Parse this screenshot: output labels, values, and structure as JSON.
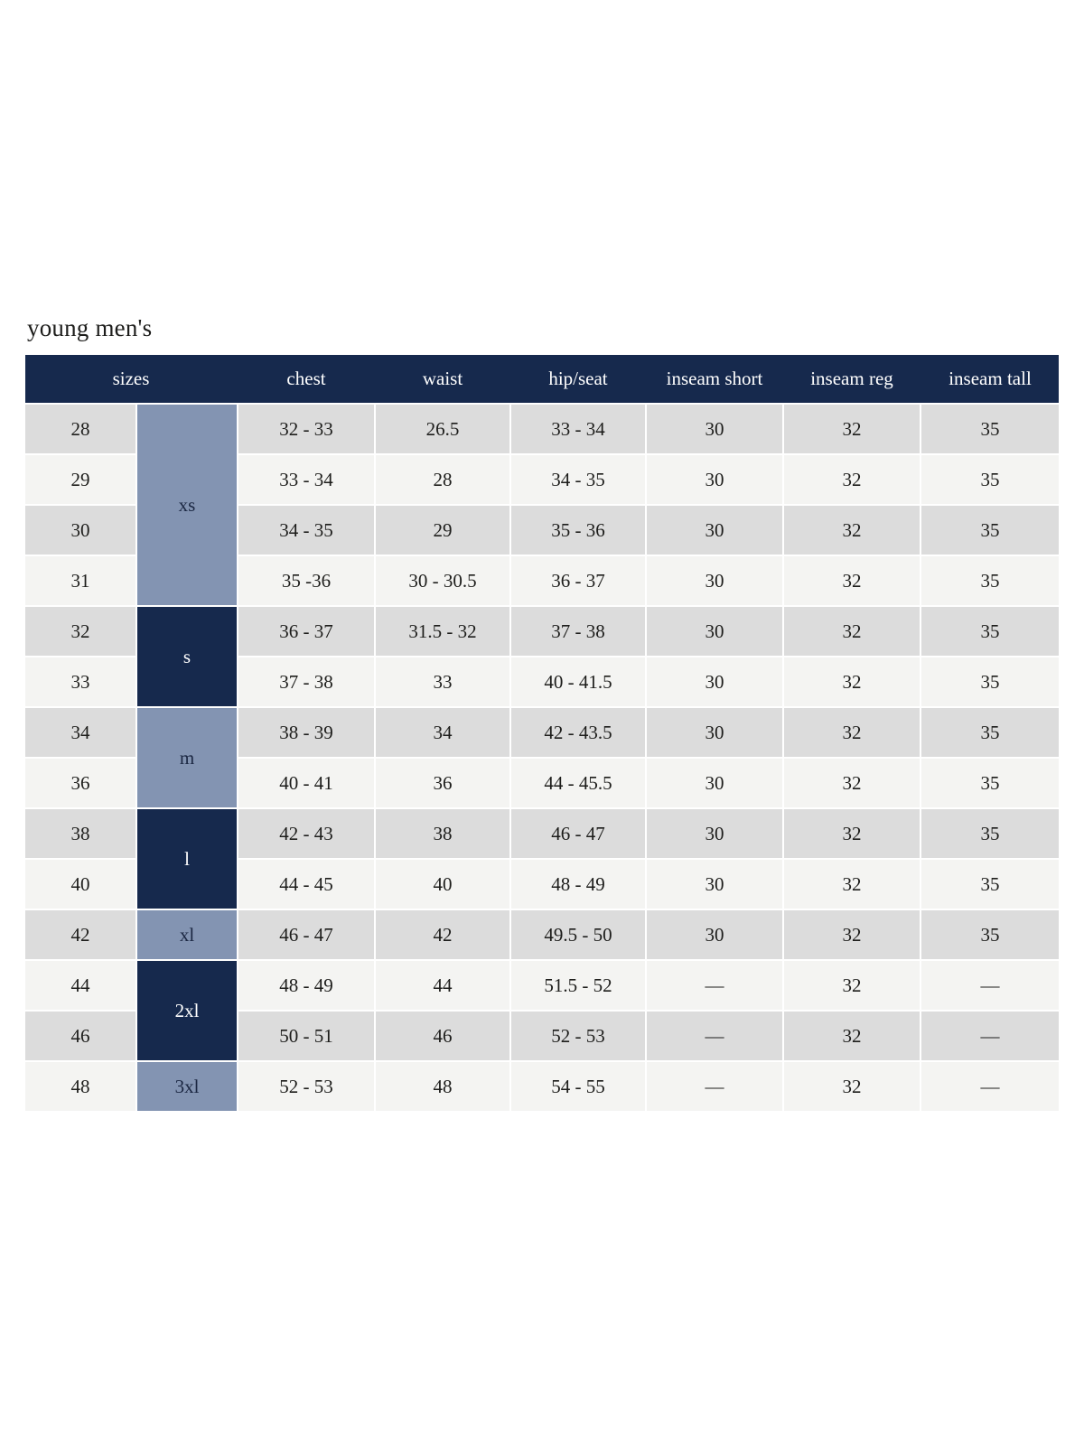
{
  "title": "young men's",
  "colors": {
    "header_navy": "#16294d",
    "group_slate": "#8394b2",
    "row_gray": "#dcdcdc",
    "row_light": "#f4f4f2",
    "header_text": "#ffffff",
    "body_text": "#1d1d1b",
    "page_bg": "#ffffff"
  },
  "table": {
    "headers": [
      "sizes",
      "chest",
      "waist",
      "hip/seat",
      "inseam short",
      "inseam reg",
      "inseam tall"
    ],
    "groups": [
      {
        "label": "xs",
        "span": 4,
        "tone": "slate"
      },
      {
        "label": "s",
        "span": 2,
        "tone": "navy"
      },
      {
        "label": "m",
        "span": 2,
        "tone": "slate"
      },
      {
        "label": "l",
        "span": 2,
        "tone": "navy"
      },
      {
        "label": "xl",
        "span": 1,
        "tone": "slate"
      },
      {
        "label": "2xl",
        "span": 2,
        "tone": "navy"
      },
      {
        "label": "3xl",
        "span": 1,
        "tone": "slate"
      }
    ],
    "columns": [
      "chest",
      "waist",
      "hip_seat",
      "inseam_short",
      "inseam_reg",
      "inseam_tall"
    ],
    "rows": [
      {
        "size": "28",
        "chest": "32 - 33",
        "waist": "26.5",
        "hip_seat": "33 - 34",
        "inseam_short": "30",
        "inseam_reg": "32",
        "inseam_tall": "35"
      },
      {
        "size": "29",
        "chest": "33 - 34",
        "waist": "28",
        "hip_seat": "34 - 35",
        "inseam_short": "30",
        "inseam_reg": "32",
        "inseam_tall": "35"
      },
      {
        "size": "30",
        "chest": "34 - 35",
        "waist": "29",
        "hip_seat": "35 - 36",
        "inseam_short": "30",
        "inseam_reg": "32",
        "inseam_tall": "35"
      },
      {
        "size": "31",
        "chest": "35 -36",
        "waist": "30 - 30.5",
        "hip_seat": "36 - 37",
        "inseam_short": "30",
        "inseam_reg": "32",
        "inseam_tall": "35"
      },
      {
        "size": "32",
        "chest": "36 - 37",
        "waist": "31.5 - 32",
        "hip_seat": "37 - 38",
        "inseam_short": "30",
        "inseam_reg": "32",
        "inseam_tall": "35"
      },
      {
        "size": "33",
        "chest": "37 - 38",
        "waist": "33",
        "hip_seat": "40 - 41.5",
        "inseam_short": "30",
        "inseam_reg": "32",
        "inseam_tall": "35"
      },
      {
        "size": "34",
        "chest": "38 - 39",
        "waist": "34",
        "hip_seat": "42 - 43.5",
        "inseam_short": "30",
        "inseam_reg": "32",
        "inseam_tall": "35"
      },
      {
        "size": "36",
        "chest": "40 - 41",
        "waist": "36",
        "hip_seat": "44 - 45.5",
        "inseam_short": "30",
        "inseam_reg": "32",
        "inseam_tall": "35"
      },
      {
        "size": "38",
        "chest": "42 - 43",
        "waist": "38",
        "hip_seat": "46 - 47",
        "inseam_short": "30",
        "inseam_reg": "32",
        "inseam_tall": "35"
      },
      {
        "size": "40",
        "chest": "44 - 45",
        "waist": "40",
        "hip_seat": "48 - 49",
        "inseam_short": "30",
        "inseam_reg": "32",
        "inseam_tall": "35"
      },
      {
        "size": "42",
        "chest": "46 - 47",
        "waist": "42",
        "hip_seat": "49.5 - 50",
        "inseam_short": "30",
        "inseam_reg": "32",
        "inseam_tall": "35"
      },
      {
        "size": "44",
        "chest": "48 - 49",
        "waist": "44",
        "hip_seat": "51.5 - 52",
        "inseam_short": "—",
        "inseam_reg": "32",
        "inseam_tall": "—"
      },
      {
        "size": "46",
        "chest": "50 - 51",
        "waist": "46",
        "hip_seat": "52 - 53",
        "inseam_short": "—",
        "inseam_reg": "32",
        "inseam_tall": "—"
      },
      {
        "size": "48",
        "chest": "52 - 53",
        "waist": "48",
        "hip_seat": "54 - 55",
        "inseam_short": "—",
        "inseam_reg": "32",
        "inseam_tall": "—"
      }
    ]
  }
}
